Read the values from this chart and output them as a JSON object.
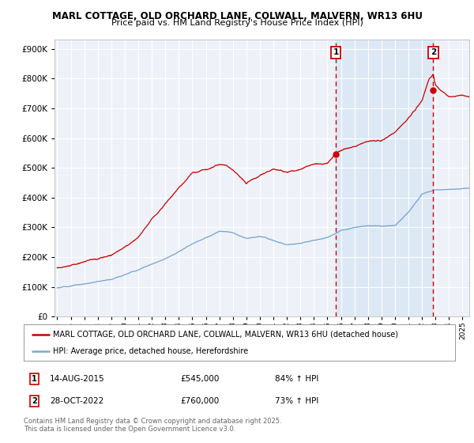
{
  "title1": "MARL COTTAGE, OLD ORCHARD LANE, COLWALL, MALVERN, WR13 6HU",
  "title2": "Price paid vs. HM Land Registry's House Price Index (HPI)",
  "background_color": "#ffffff",
  "plot_bg_color": "#eef2f8",
  "grid_color": "#ffffff",
  "red_color": "#cc0000",
  "blue_color": "#6699cc",
  "shade_color": "#dde8f5",
  "purchase1_x": 2015.62,
  "purchase1_price": 545000,
  "purchase2_x": 2022.83,
  "purchase2_price": 760000,
  "legend1": "MARL COTTAGE, OLD ORCHARD LANE, COLWALL, MALVERN, WR13 6HU (detached house)",
  "legend2": "HPI: Average price, detached house, Herefordshire",
  "footer": "Contains HM Land Registry data © Crown copyright and database right 2025.\nThis data is licensed under the Open Government Licence v3.0.",
  "ylim": [
    0,
    930000
  ],
  "xlim_start": 1994.8,
  "xlim_end": 2025.5
}
